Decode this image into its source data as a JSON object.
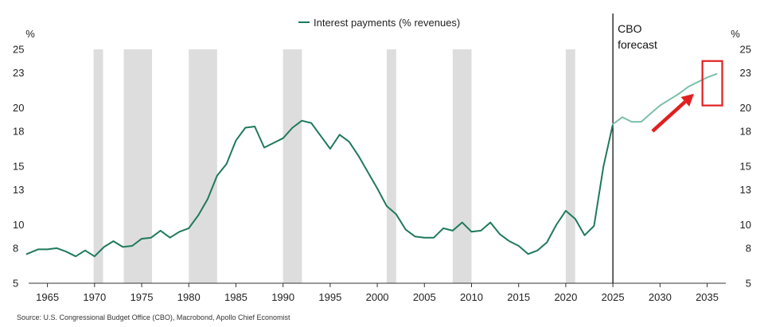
{
  "chart_data": {
    "type": "line",
    "title": "",
    "legend": {
      "label": "Interest payments (% revenues)",
      "color": "#1f7a5a",
      "placement": "top-center"
    },
    "ylabel_left": "%",
    "ylabel_right": "%",
    "xlim": [
      1962.5,
      2038.5
    ],
    "ylim": [
      5,
      25
    ],
    "yticks": [
      5,
      8,
      10,
      13,
      15,
      18,
      20,
      23,
      25
    ],
    "ytick_labels": [
      "5",
      "8",
      "10",
      "13",
      "15",
      "18",
      "20",
      "23",
      "25"
    ],
    "xticks": [
      1965,
      1970,
      1975,
      1980,
      1985,
      1990,
      1995,
      2000,
      2005,
      2010,
      2015,
      2020,
      2025,
      2030,
      2035
    ],
    "xtick_labels": [
      "1965",
      "1970",
      "1975",
      "1980",
      "1985",
      "1990",
      "1995",
      "2000",
      "2005",
      "2010",
      "2015",
      "2020",
      "2025",
      "2030",
      "2035"
    ],
    "recessions": [
      [
        1969.9,
        1970.9
      ],
      [
        1973.1,
        1976.1
      ],
      [
        1980.0,
        1983.0
      ],
      [
        1990.0,
        1992.0
      ],
      [
        2001.0,
        2002.0
      ],
      [
        2008.0,
        2010.0
      ],
      [
        2020.0,
        2021.0
      ]
    ],
    "forecast_start": 2025,
    "forecast_label_line1": "CBO",
    "forecast_label_line2": "forecast",
    "series": [
      {
        "name": "Interest payments (% revenues) - historical",
        "color": "#1f7a5a",
        "x": [
          1962.8,
          1964,
          1965,
          1966,
          1967,
          1968,
          1969,
          1970,
          1971,
          1972,
          1973,
          1974,
          1975,
          1976,
          1977,
          1978,
          1979,
          1980,
          1981,
          1982,
          1983,
          1984,
          1985,
          1986,
          1987,
          1988,
          1989,
          1990,
          1991,
          1992,
          1993,
          1994,
          1995,
          1996,
          1997,
          1998,
          1999,
          2000,
          2001,
          2002,
          2003,
          2004,
          2005,
          2006,
          2007,
          2008,
          2009,
          2010,
          2011,
          2012,
          2013,
          2014,
          2015,
          2016,
          2017,
          2018,
          2019,
          2020,
          2021,
          2022,
          2023,
          2024,
          2025
        ],
        "y": [
          7.5,
          7.9,
          7.9,
          8.0,
          7.7,
          7.3,
          7.8,
          7.3,
          8.1,
          8.6,
          8.1,
          8.2,
          8.8,
          8.9,
          9.5,
          8.9,
          9.4,
          9.7,
          10.8,
          12.2,
          14.2,
          15.2,
          17.2,
          18.3,
          18.4,
          16.6,
          17.0,
          17.4,
          18.3,
          18.9,
          18.7,
          17.6,
          16.5,
          17.7,
          17.1,
          15.9,
          14.5,
          13.1,
          11.6,
          10.9,
          9.6,
          9.0,
          8.9,
          8.9,
          9.7,
          9.5,
          10.2,
          9.4,
          9.5,
          10.2,
          9.2,
          8.6,
          8.2,
          7.5,
          7.8,
          8.5,
          10.0,
          11.2,
          10.5,
          9.1,
          9.9,
          15.0,
          18.6
        ]
      },
      {
        "name": "Interest payments (% revenues) - CBO forecast",
        "color": "#7dbfa8",
        "x": [
          2025,
          2026,
          2027,
          2028,
          2029,
          2030,
          2031,
          2032,
          2033,
          2034,
          2035,
          2036
        ],
        "y": [
          18.6,
          19.2,
          18.8,
          18.8,
          19.5,
          20.2,
          20.7,
          21.2,
          21.8,
          22.2,
          22.6,
          22.9
        ]
      }
    ],
    "annotations": {
      "highlight_box_color": "#e02020",
      "arrow_color": "#e02020",
      "box_x": [
        2034.5,
        2036.6
      ],
      "box_y": [
        20.2,
        24.0
      ],
      "arrow_from": [
        2029.2,
        18.0
      ],
      "arrow_to": [
        2033.6,
        21.2
      ]
    },
    "source": "Source: U.S. Congressional Budget Office (CBO), Macrobond, Apollo Chief Economist"
  }
}
